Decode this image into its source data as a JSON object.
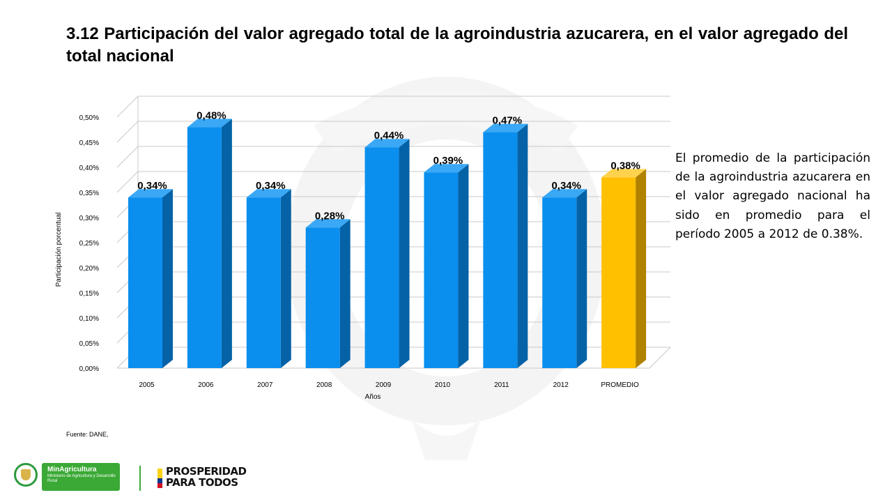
{
  "title": "3.12 Participación del valor agregado total de la agroindustria azucarera, en el valor agregado del total nacional",
  "side_text": "El promedio de la participación de la agroindustria azucarera en el valor agregado nacional ha sido en promedio para el período 2005 a 2012 de 0.38%.",
  "source": "Fuente: DANE,",
  "footer": {
    "ministry_name": "MinAgricultura",
    "ministry_sub": "Ministerio de Agricultura y Desarrollo Rural",
    "slogan_line1": "PROSPERIDAD",
    "slogan_line2": "PARA TODOS"
  },
  "colors": {
    "bar": "#0a8fef",
    "bar_side": "#0562a6",
    "bar_top": "#3aa8f5",
    "highlight": "#ffc000",
    "highlight_side": "#b08200",
    "highlight_top": "#ffd24d",
    "grid": "#c8c8c8"
  },
  "chart_data": {
    "type": "bar",
    "categories": [
      "2005",
      "2006",
      "2007",
      "2008",
      "2009",
      "2010",
      "2011",
      "2012",
      "PROMEDIO"
    ],
    "values": [
      0.34,
      0.48,
      0.34,
      0.28,
      0.44,
      0.39,
      0.47,
      0.34,
      0.38
    ],
    "data_labels": [
      "0,34%",
      "0,48%",
      "0,34%",
      "0,28%",
      "0,44%",
      "0,39%",
      "0,47%",
      "0,34%",
      "0,38%"
    ],
    "highlight_category": "PROMEDIO",
    "ylim": [
      0,
      0.5
    ],
    "yticks": [
      "0,00%",
      "0,05%",
      "0,10%",
      "0,15%",
      "0,20%",
      "0,25%",
      "0,30%",
      "0,35%",
      "0,40%",
      "0,45%",
      "0,50%"
    ],
    "xlabel": "Años",
    "ylabel": "Participación porcentual",
    "grid": true,
    "style": "3d-column"
  }
}
